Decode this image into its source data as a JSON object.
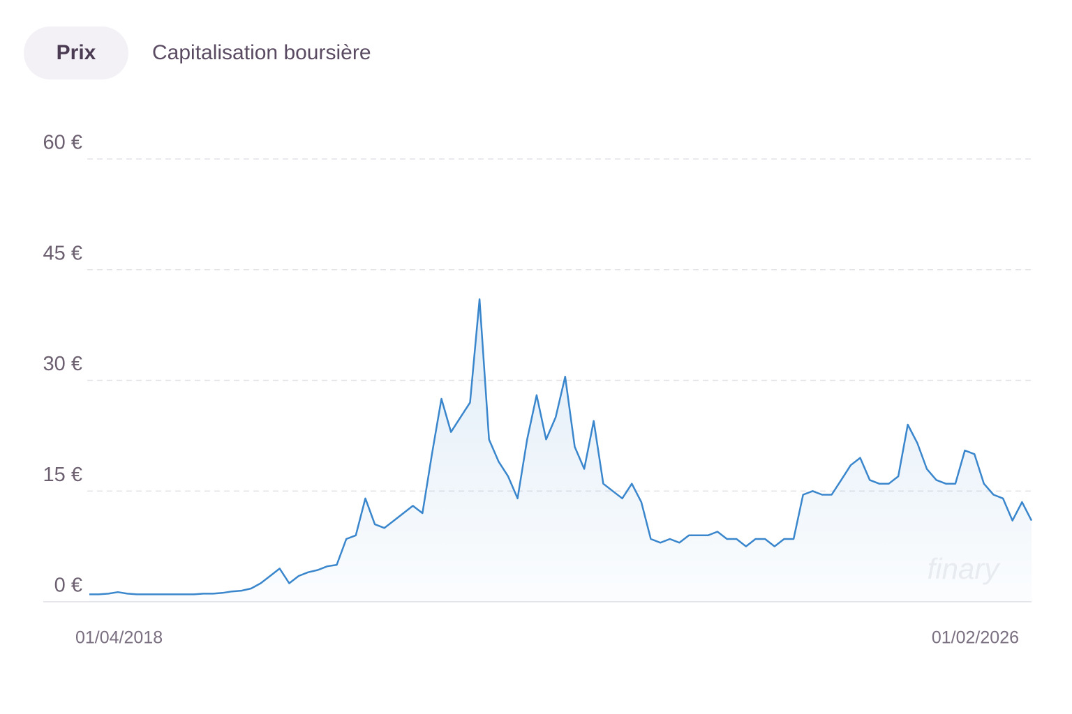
{
  "tabs": [
    "Prix",
    "Capitalisation boursière"
  ],
  "chart_data": {
    "type": "line",
    "categories": [
      "01/04/2018",
      null,
      null,
      null,
      null,
      null,
      null,
      null,
      null,
      null,
      null,
      null,
      null,
      null,
      null,
      null,
      null,
      null,
      null,
      null,
      null,
      null,
      null,
      null,
      null,
      null,
      null,
      null,
      null,
      null,
      null,
      null,
      null,
      null,
      null,
      null,
      null,
      null,
      null,
      null,
      null,
      null,
      null,
      null,
      null,
      null,
      null,
      null,
      null,
      null,
      null,
      null,
      null,
      null,
      null,
      null,
      null,
      null,
      null,
      null,
      null,
      null,
      null,
      null,
      null,
      null,
      null,
      null,
      null,
      null,
      null,
      null,
      null,
      null,
      null,
      null,
      null,
      null,
      null,
      null,
      null,
      null,
      null,
      null,
      null,
      null,
      null,
      null,
      null,
      null,
      null,
      null,
      null,
      null,
      null,
      null,
      null,
      null,
      null,
      "01/02/2026"
    ],
    "series": [
      {
        "color": "#3a86cc",
        "values": [
          1.0,
          1.0,
          1.1,
          1.3,
          1.1,
          1.0,
          1.0,
          1.0,
          1.0,
          1.0,
          1.0,
          1.0,
          1.1,
          1.1,
          1.2,
          1.4,
          1.5,
          1.8,
          2.5,
          3.5,
          4.5,
          2.5,
          3.5,
          4.0,
          4.3,
          4.8,
          5.0,
          8.5,
          9.0,
          14.0,
          10.5,
          10.0,
          11.0,
          12.0,
          13.0,
          12.0,
          20.0,
          27.5,
          23.0,
          25.0,
          27.0,
          41.0,
          22.0,
          19.0,
          17.0,
          14.0,
          22.0,
          28.0,
          22.0,
          25.0,
          30.5,
          21.0,
          18.0,
          24.5,
          16.0,
          15.0,
          14.0,
          16.0,
          13.5,
          8.5,
          8.0,
          8.5,
          8.0,
          9.0,
          9.0,
          9.0,
          9.5,
          8.5,
          8.5,
          7.5,
          8.5,
          8.5,
          7.5,
          8.5,
          8.5,
          14.5,
          15.0,
          14.5,
          14.5,
          16.5,
          18.5,
          19.5,
          16.5,
          16.0,
          16.0,
          17.0,
          24.0,
          21.5,
          18.0,
          16.5,
          16.0,
          16.0,
          20.5,
          20.0,
          16.0,
          14.5,
          14.0,
          11.0,
          13.5,
          11.0
        ]
      }
    ],
    "ylim": [
      0,
      60
    ],
    "yticks": [
      {
        "value": 0,
        "label": "0 €"
      },
      {
        "value": 15,
        "label": "15 €"
      },
      {
        "value": 30,
        "label": "30 €"
      },
      {
        "value": 45,
        "label": "45 €"
      },
      {
        "value": 60,
        "label": "60 €"
      }
    ],
    "grid": true,
    "watermark": "finary"
  }
}
